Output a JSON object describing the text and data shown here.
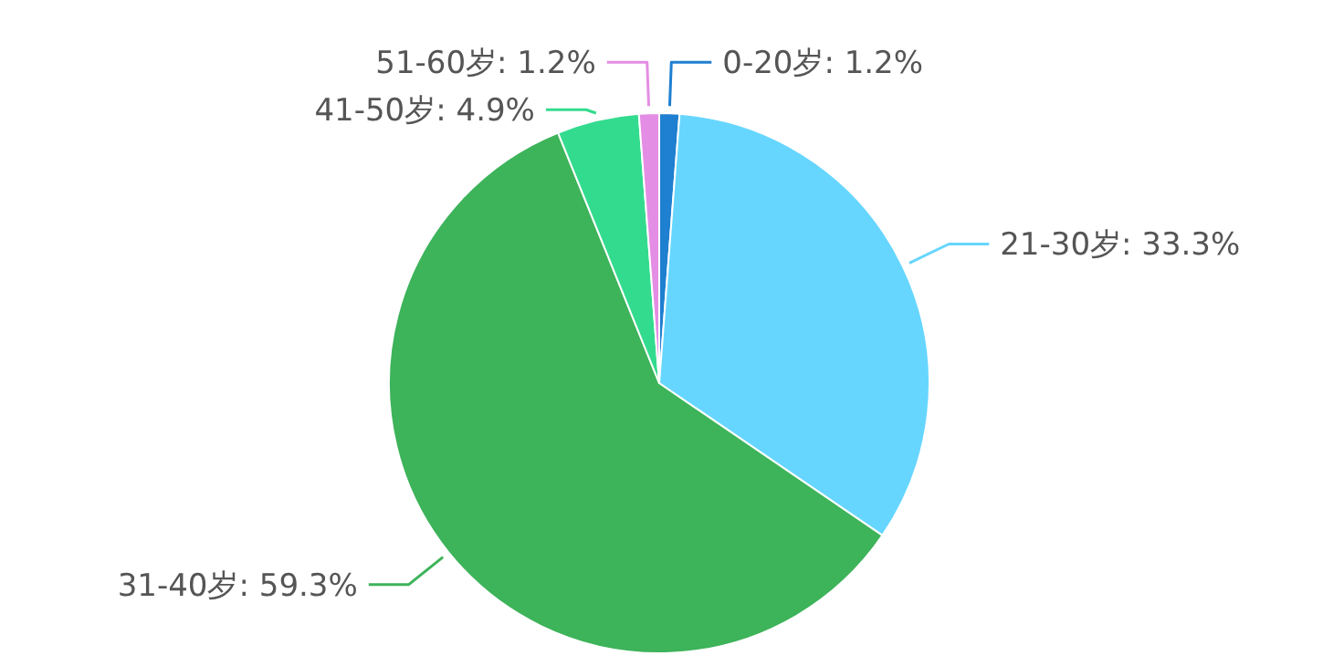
{
  "chart_data": {
    "type": "pie",
    "categories": [
      "0-20岁",
      "21-30岁",
      "31-40岁",
      "41-50岁",
      "51-60岁"
    ],
    "values": [
      1.2,
      33.3,
      59.3,
      4.9,
      1.2
    ],
    "value_labels": [
      "1.2%",
      "33.3%",
      "59.3%",
      "4.9%",
      "1.2%"
    ],
    "colors": [
      "#1f7fd0",
      "#66d6ff",
      "#3db35a",
      "#33db8e",
      "#e48de4"
    ]
  }
}
